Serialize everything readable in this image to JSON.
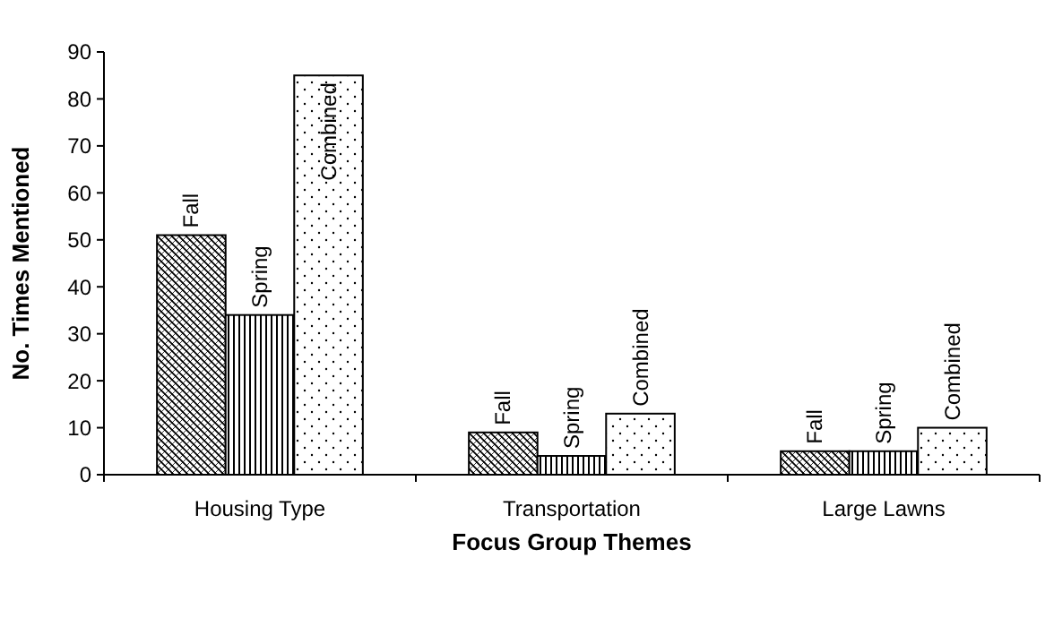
{
  "chart_data": {
    "type": "bar",
    "xlabel": "Focus Group Themes",
    "ylabel": "No. Times Mentioned",
    "categories": [
      "Housing Type",
      "Transportation",
      "Large Lawns"
    ],
    "series": [
      {
        "name": "Fall",
        "color": "#000000",
        "values": [
          51,
          9,
          5
        ]
      },
      {
        "name": "Spring",
        "color": "#000000",
        "values": [
          34,
          4,
          5
        ]
      },
      {
        "name": "Combined",
        "color": "#000000",
        "values": [
          85,
          13,
          10
        ]
      }
    ],
    "ylim": [
      0,
      90
    ],
    "yticks": [
      0,
      10,
      20,
      30,
      40,
      50,
      60,
      70,
      80,
      90
    ]
  }
}
